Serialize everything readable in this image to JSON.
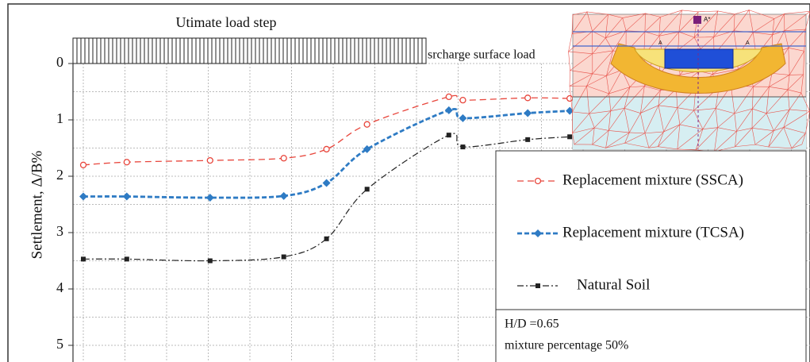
{
  "chart_data": {
    "type": "line",
    "y_label": "Settlement, Δ/B%",
    "annotations": [
      "Utimate load step",
      "srcharge surface load"
    ],
    "notes": [
      "H/D =0.65",
      "mixture percentage 50%"
    ],
    "inset_labels": [
      "A*",
      "A",
      "A"
    ],
    "x": [
      1.4,
      7.3,
      18.6,
      28.6,
      34.4,
      39.9,
      51.0,
      52.9,
      61.7,
      67.4
    ],
    "xlim": [
      0,
      100
    ],
    "ylim": [
      0,
      5
    ],
    "yticks": [
      0,
      1,
      2,
      3,
      4,
      5
    ],
    "y_inverted": true,
    "grid": true,
    "series": [
      {
        "name": "Replacement mixture (SSCA)",
        "color": "#e8463c",
        "marker": "circle",
        "values": [
          1.8,
          1.75,
          1.72,
          1.68,
          1.52,
          1.08,
          0.59,
          0.65,
          0.61,
          0.62
        ]
      },
      {
        "name": "Replacement mixture (TCSA)",
        "color": "#2e7bc4",
        "marker": "diamond",
        "values": [
          2.36,
          2.36,
          2.38,
          2.35,
          2.12,
          1.52,
          0.83,
          0.97,
          0.88,
          0.84
        ]
      },
      {
        "name": "Natural Soil",
        "color": "#222222",
        "marker": "square",
        "values": [
          3.47,
          3.47,
          3.5,
          3.43,
          3.11,
          2.23,
          1.27,
          1.48,
          1.35,
          1.3
        ]
      }
    ]
  }
}
